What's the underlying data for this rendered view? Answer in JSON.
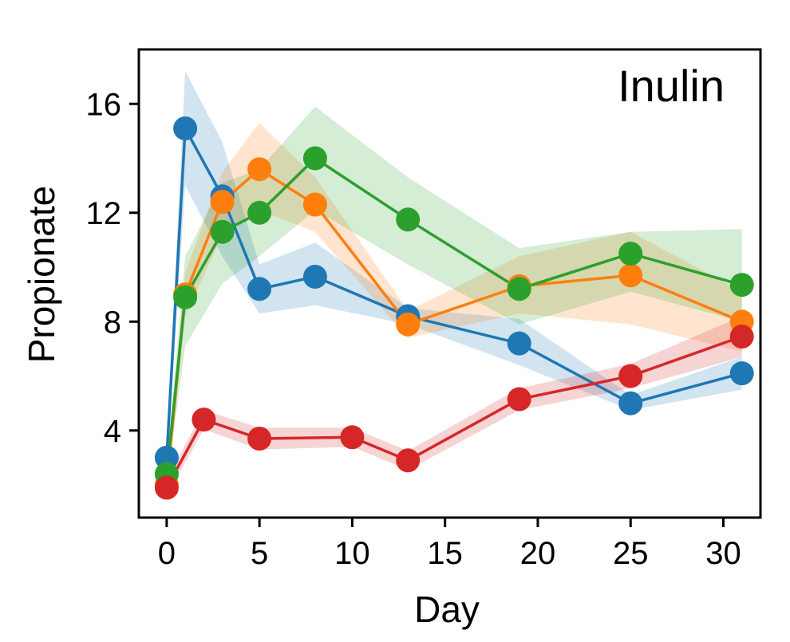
{
  "chart_data": {
    "type": "line",
    "annotation": "Inulin",
    "xlabel": "Day",
    "ylabel": "Propionate",
    "xlim": [
      -1.5,
      32
    ],
    "ylim": [
      0.8,
      18
    ],
    "xticks": [
      0,
      5,
      10,
      15,
      20,
      25,
      30
    ],
    "yticks": [
      4,
      8,
      12,
      16
    ],
    "grid": false,
    "legend": "none",
    "series": [
      {
        "color": "#1f77b4",
        "x": [
          0,
          1,
          3,
          5,
          8,
          13,
          19,
          25,
          31
        ],
        "y": [
          3.0,
          15.1,
          12.6,
          9.2,
          9.65,
          8.2,
          7.2,
          5.0,
          6.1
        ],
        "lower": [
          2.6,
          13.0,
          10.4,
          8.3,
          8.6,
          7.9,
          6.4,
          4.75,
          5.5
        ],
        "upper": [
          3.4,
          17.2,
          14.6,
          10.1,
          10.9,
          8.5,
          8.1,
          5.3,
          6.7
        ]
      },
      {
        "color": "#ff7f0e",
        "x": [
          0,
          1,
          3,
          5,
          8,
          13,
          19,
          25,
          31
        ],
        "y": [
          2.0,
          9.0,
          12.4,
          13.6,
          12.3,
          7.9,
          9.3,
          9.7,
          8.0
        ],
        "lower": [
          1.6,
          8.2,
          11.2,
          12.1,
          11.3,
          7.4,
          8.3,
          7.9,
          6.9
        ],
        "upper": [
          2.4,
          9.8,
          13.5,
          15.3,
          13.3,
          8.4,
          10.4,
          11.3,
          9.1
        ]
      },
      {
        "color": "#2ca02c",
        "x": [
          0,
          1,
          3,
          5,
          8,
          13,
          19,
          25,
          31
        ],
        "y": [
          2.4,
          8.9,
          11.3,
          12.0,
          14.0,
          11.75,
          9.2,
          10.5,
          9.35
        ],
        "lower": [
          2.0,
          7.1,
          9.4,
          10.4,
          12.1,
          10.1,
          7.9,
          9.1,
          8.0
        ],
        "upper": [
          2.8,
          10.4,
          13.1,
          13.6,
          15.9,
          13.3,
          10.7,
          11.3,
          11.4
        ]
      },
      {
        "color": "#d62728",
        "x": [
          0,
          2,
          5,
          10,
          13,
          19,
          25,
          31
        ],
        "y": [
          1.9,
          4.4,
          3.7,
          3.75,
          2.9,
          5.15,
          6.0,
          7.45
        ],
        "lower": [
          1.6,
          4.05,
          3.3,
          3.4,
          2.55,
          4.75,
          5.55,
          6.7
        ],
        "upper": [
          2.2,
          4.75,
          4.1,
          4.1,
          3.25,
          5.55,
          6.45,
          8.2
        ]
      }
    ]
  }
}
